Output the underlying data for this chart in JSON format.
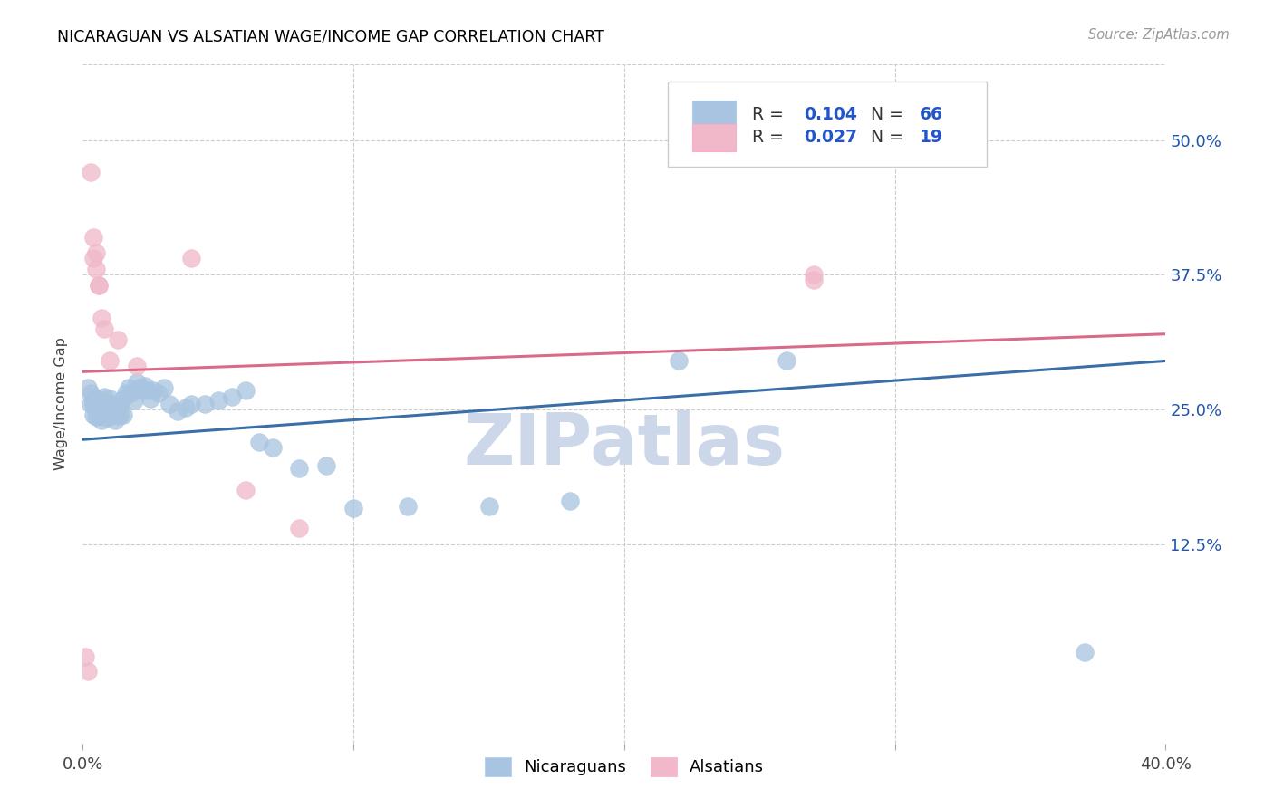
{
  "title": "NICARAGUAN VS ALSATIAN WAGE/INCOME GAP CORRELATION CHART",
  "source": "Source: ZipAtlas.com",
  "ylabel": "Wage/Income Gap",
  "xlim": [
    0.0,
    0.4
  ],
  "ylim": [
    -0.06,
    0.57
  ],
  "xticks": [
    0.0,
    0.1,
    0.2,
    0.3,
    0.4
  ],
  "xtick_labels": [
    "0.0%",
    "",
    "",
    "",
    "40.0%"
  ],
  "ytick_labels": [
    "12.5%",
    "25.0%",
    "37.5%",
    "50.0%"
  ],
  "yticks": [
    0.125,
    0.25,
    0.375,
    0.5
  ],
  "blue_R": 0.104,
  "blue_N": 66,
  "pink_R": 0.027,
  "pink_N": 19,
  "blue_color": "#a8c4e0",
  "pink_color": "#f0b8c8",
  "blue_line_color": "#3a6ea8",
  "pink_line_color": "#d96b8a",
  "legend_R_color": "#2255cc",
  "watermark": "ZIPatlas",
  "watermark_color": "#ccd8ea",
  "blue_line_x0": 0.0,
  "blue_line_y0": 0.222,
  "blue_line_x1": 0.4,
  "blue_line_y1": 0.295,
  "pink_line_x0": 0.0,
  "pink_line_y0": 0.285,
  "pink_line_x1": 0.4,
  "pink_line_y1": 0.32,
  "blue_x": [
    0.002,
    0.003,
    0.003,
    0.004,
    0.004,
    0.004,
    0.005,
    0.005,
    0.005,
    0.006,
    0.006,
    0.006,
    0.007,
    0.007,
    0.007,
    0.008,
    0.008,
    0.008,
    0.009,
    0.009,
    0.009,
    0.01,
    0.01,
    0.01,
    0.011,
    0.011,
    0.012,
    0.012,
    0.013,
    0.013,
    0.014,
    0.014,
    0.015,
    0.015,
    0.016,
    0.017,
    0.018,
    0.019,
    0.02,
    0.021,
    0.022,
    0.023,
    0.024,
    0.025,
    0.026,
    0.028,
    0.03,
    0.032,
    0.035,
    0.038,
    0.04,
    0.045,
    0.05,
    0.055,
    0.06,
    0.065,
    0.07,
    0.08,
    0.09,
    0.1,
    0.12,
    0.15,
    0.18,
    0.22,
    0.26,
    0.37
  ],
  "blue_y": [
    0.27,
    0.265,
    0.255,
    0.255,
    0.245,
    0.258,
    0.25,
    0.243,
    0.26,
    0.252,
    0.244,
    0.255,
    0.248,
    0.258,
    0.24,
    0.252,
    0.248,
    0.262,
    0.252,
    0.242,
    0.256,
    0.248,
    0.26,
    0.252,
    0.245,
    0.255,
    0.25,
    0.24,
    0.252,
    0.244,
    0.245,
    0.255,
    0.245,
    0.26,
    0.265,
    0.27,
    0.265,
    0.258,
    0.275,
    0.27,
    0.268,
    0.272,
    0.268,
    0.26,
    0.268,
    0.265,
    0.27,
    0.255,
    0.248,
    0.252,
    0.255,
    0.255,
    0.258,
    0.262,
    0.268,
    0.22,
    0.215,
    0.195,
    0.198,
    0.158,
    0.16,
    0.16,
    0.165,
    0.295,
    0.295,
    0.025
  ],
  "pink_x": [
    0.001,
    0.002,
    0.003,
    0.004,
    0.004,
    0.005,
    0.005,
    0.006,
    0.006,
    0.007,
    0.008,
    0.01,
    0.013,
    0.02,
    0.04,
    0.06,
    0.08,
    0.27,
    0.27
  ],
  "pink_y": [
    0.02,
    0.007,
    0.47,
    0.41,
    0.39,
    0.395,
    0.38,
    0.365,
    0.365,
    0.335,
    0.325,
    0.295,
    0.315,
    0.29,
    0.39,
    0.175,
    0.14,
    0.375,
    0.37
  ]
}
